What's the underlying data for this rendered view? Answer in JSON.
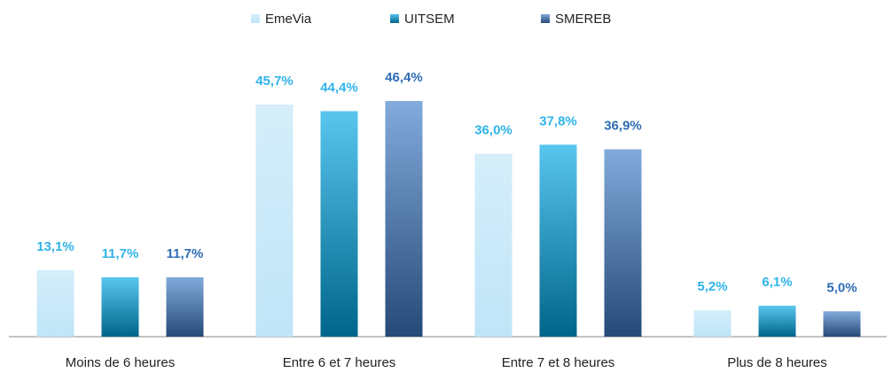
{
  "chart_data": {
    "type": "bar",
    "categories": [
      "Moins de 6 heures",
      "Entre 6 et 7 heures",
      "Entre 7 et 8 heures",
      "Plus de 8 heures"
    ],
    "series": [
      {
        "name": "EmeVia",
        "color": "#bfe5f8",
        "label_color": "#2fb4ea",
        "values": [
          13.1,
          45.7,
          36.0,
          5.2
        ],
        "value_labels": [
          "13,1%",
          "45,7%",
          "36,0%",
          "5,2%"
        ]
      },
      {
        "name": "UITSEM",
        "color": "#00a8e6",
        "label_color": "#2fb4ea",
        "values": [
          11.7,
          44.4,
          37.8,
          6.1
        ],
        "value_labels": [
          "11,7%",
          "44,4%",
          "37,8%",
          "6,1%"
        ]
      },
      {
        "name": "SMEREB",
        "color": "#3f7cc8",
        "label_color": "#2e6db5",
        "values": [
          11.7,
          46.4,
          36.9,
          5.0
        ],
        "value_labels": [
          "11,7%",
          "46,4%",
          "36,9%",
          "5,0%"
        ]
      }
    ],
    "legend": "top"
  }
}
